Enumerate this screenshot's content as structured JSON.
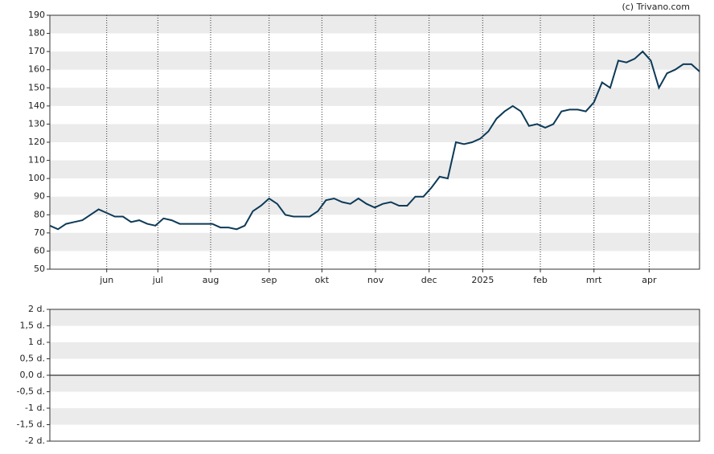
{
  "chart_data": [
    {
      "type": "line",
      "credit": "(c) Trivano.com",
      "series": [
        {
          "color": "#0d3a58",
          "values": [
            74,
            72,
            75,
            76,
            77,
            80,
            83,
            81,
            79,
            79,
            76,
            77,
            75,
            74,
            78,
            77,
            75,
            75,
            75,
            75,
            75,
            73,
            73,
            72,
            74,
            82,
            85,
            89,
            86,
            80,
            79,
            79,
            79,
            82,
            88,
            89,
            87,
            86,
            89,
            86,
            84,
            86,
            87,
            85,
            85,
            90,
            90,
            95,
            101,
            100,
            120,
            119,
            120,
            122,
            126,
            133,
            137,
            140,
            137,
            129,
            130,
            128,
            130,
            137,
            138,
            138,
            137,
            142,
            153,
            150,
            165,
            164,
            166,
            170,
            165,
            150,
            158,
            160,
            163,
            163,
            159
          ]
        }
      ],
      "xlim": [
        0,
        80
      ],
      "xticks": [
        {
          "value": 7,
          "label": "jun"
        },
        {
          "value": 13.3,
          "label": "jul"
        },
        {
          "value": 19.8,
          "label": "aug"
        },
        {
          "value": 27,
          "label": "sep"
        },
        {
          "value": 33.5,
          "label": "okt"
        },
        {
          "value": 40.1,
          "label": "nov"
        },
        {
          "value": 46.7,
          "label": "dec"
        },
        {
          "value": 53.3,
          "label": "2025"
        },
        {
          "value": 60.4,
          "label": "feb"
        },
        {
          "value": 67,
          "label": "mrt"
        },
        {
          "value": 73.8,
          "label": "apr"
        }
      ],
      "ylim": [
        50,
        190
      ],
      "yticks": [
        50,
        60,
        70,
        80,
        90,
        100,
        110,
        120,
        130,
        140,
        150,
        160,
        170,
        180,
        190
      ]
    },
    {
      "type": "bar",
      "ylim": [
        -2,
        2
      ],
      "yticks": [
        {
          "value": -2,
          "label": "-2 d."
        },
        {
          "value": -1.5,
          "label": "-1,5 d."
        },
        {
          "value": -1,
          "label": "-1 d."
        },
        {
          "value": -0.5,
          "label": "-0,5 d."
        },
        {
          "value": 0,
          "label": "0,0 d."
        },
        {
          "value": 0.5,
          "label": "0,5 d."
        },
        {
          "value": 1,
          "label": "1 d."
        },
        {
          "value": 1.5,
          "label": "1,5 d."
        },
        {
          "value": 2,
          "label": "2 d."
        }
      ]
    }
  ]
}
